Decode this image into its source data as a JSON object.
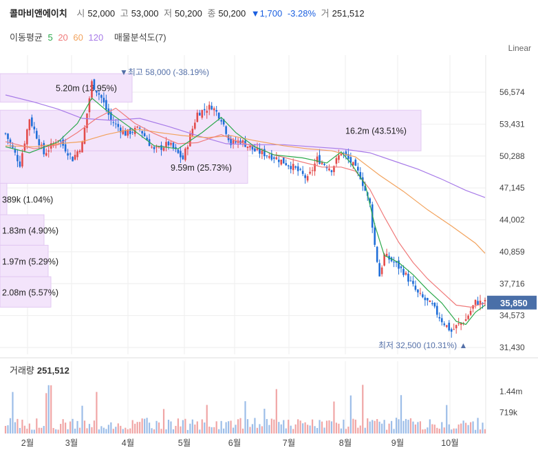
{
  "header": {
    "name": "콜마비앤에이치",
    "open_label": "시",
    "open": "52,000",
    "high_label": "고",
    "high": "53,000",
    "low_label": "저",
    "low": "50,200",
    "close_label": "종",
    "close": "50,200",
    "change": "▼1,700",
    "change_pct": "-3.28%",
    "volume_label": "거",
    "volume": "251,512"
  },
  "ma_legend": {
    "label": "이동평균",
    "periods": [
      "5",
      "20",
      "60",
      "120"
    ],
    "volume_profile": "매물분석도(7)"
  },
  "scale_mode": "Linear",
  "colors": {
    "up": "#e24b4b",
    "down": "#1f6ed8",
    "ma5": "#2aa84a",
    "ma20": "#f07a7a",
    "ma60": "#f2a25c",
    "ma120": "#a77ae8",
    "profile": "#f3e4fb",
    "current_price_tag": "#4a6fa8"
  },
  "chart_data": {
    "type": "candlestick",
    "y_ticks": [
      "56,574",
      "53,431",
      "50,288",
      "47,145",
      "44,002",
      "40,859",
      "37,716",
      "34,573",
      "31,430"
    ],
    "y_tick_values": [
      56574,
      53431,
      50288,
      47145,
      44002,
      40859,
      37716,
      34573,
      31430
    ],
    "x_months": [
      "2월",
      "3월",
      "4월",
      "5월",
      "6월",
      "7월",
      "8월",
      "9월",
      "10월"
    ],
    "current_price": "35,850",
    "current_price_value": 35850,
    "high_annotation": "최고 58,000 (-38.19%)",
    "high_value": 58000,
    "low_annotation": "최저 32,500 (10.31%)",
    "low_value": 32500,
    "volume_profile": [
      {
        "label": "5.20m (13.95%)",
        "price_from": 55600,
        "price_to": 58400
      },
      {
        "label": "16.2m (43.51%)",
        "price_from": 50800,
        "price_to": 54800
      },
      {
        "label": "9.59m (25.73%)",
        "price_from": 47600,
        "price_to": 50800
      },
      {
        "label": "389k (1.04%)",
        "price_from": 44500,
        "price_to": 47600
      },
      {
        "label": "1.83m (4.90%)",
        "price_from": 41500,
        "price_to": 44500
      },
      {
        "label": "1.97m (5.29%)",
        "price_from": 38400,
        "price_to": 41500
      },
      {
        "label": "2.08m (5.57%)",
        "price_from": 35400,
        "price_to": 38400
      }
    ],
    "ma120": [
      [
        0,
        56300
      ],
      [
        12,
        55600
      ],
      [
        22,
        54900
      ],
      [
        32,
        54000
      ],
      [
        44,
        53800
      ],
      [
        56,
        54000
      ],
      [
        68,
        53200
      ],
      [
        80,
        52300
      ],
      [
        92,
        51500
      ],
      [
        104,
        51400
      ],
      [
        116,
        51400
      ],
      [
        128,
        51200
      ],
      [
        140,
        51000
      ],
      [
        152,
        50600
      ],
      [
        162,
        49800
      ],
      [
        172,
        49000
      ],
      [
        182,
        48000
      ],
      [
        192,
        46900
      ],
      [
        200,
        46200
      ]
    ],
    "ma60": [
      [
        0,
        51300
      ],
      [
        12,
        51200
      ],
      [
        22,
        51500
      ],
      [
        32,
        51700
      ],
      [
        42,
        52400
      ],
      [
        50,
        52800
      ],
      [
        56,
        52900
      ],
      [
        64,
        52600
      ],
      [
        74,
        52300
      ],
      [
        84,
        52100
      ],
      [
        94,
        52300
      ],
      [
        104,
        51800
      ],
      [
        116,
        51300
      ],
      [
        126,
        51000
      ],
      [
        136,
        50800
      ],
      [
        146,
        50200
      ],
      [
        156,
        48400
      ],
      [
        166,
        46800
      ],
      [
        176,
        45000
      ],
      [
        186,
        43400
      ],
      [
        196,
        41700
      ],
      [
        200,
        40700
      ]
    ],
    "ma20": [
      [
        0,
        51700
      ],
      [
        12,
        51000
      ],
      [
        22,
        51400
      ],
      [
        30,
        52600
      ],
      [
        38,
        54000
      ],
      [
        46,
        55000
      ],
      [
        54,
        53500
      ],
      [
        62,
        52500
      ],
      [
        72,
        51500
      ],
      [
        80,
        51600
      ],
      [
        90,
        52400
      ],
      [
        96,
        51800
      ],
      [
        104,
        51200
      ],
      [
        112,
        50400
      ],
      [
        122,
        49800
      ],
      [
        132,
        49200
      ],
      [
        140,
        49200
      ],
      [
        146,
        48800
      ],
      [
        152,
        47000
      ],
      [
        158,
        44300
      ],
      [
        164,
        41800
      ],
      [
        170,
        39800
      ],
      [
        176,
        38200
      ],
      [
        182,
        36900
      ],
      [
        188,
        35600
      ],
      [
        194,
        35400
      ],
      [
        200,
        35800
      ]
    ],
    "ma5": [
      [
        0,
        51200
      ],
      [
        10,
        50600
      ],
      [
        22,
        51700
      ],
      [
        30,
        53500
      ],
      [
        36,
        56000
      ],
      [
        42,
        54800
      ],
      [
        52,
        53100
      ],
      [
        62,
        51300
      ],
      [
        72,
        51000
      ],
      [
        82,
        52600
      ],
      [
        90,
        54100
      ],
      [
        96,
        52600
      ],
      [
        104,
        51200
      ],
      [
        112,
        50400
      ],
      [
        124,
        50100
      ],
      [
        134,
        49600
      ],
      [
        140,
        50700
      ],
      [
        144,
        49600
      ],
      [
        150,
        47500
      ],
      [
        154,
        43500
      ],
      [
        158,
        40500
      ],
      [
        164,
        39800
      ],
      [
        170,
        38600
      ],
      [
        176,
        37100
      ],
      [
        182,
        35800
      ],
      [
        188,
        34000
      ],
      [
        192,
        33700
      ],
      [
        196,
        34900
      ],
      [
        200,
        35600
      ]
    ],
    "close_path": [
      [
        0,
        52500
      ],
      [
        6,
        49500
      ],
      [
        10,
        54000
      ],
      [
        16,
        50500
      ],
      [
        22,
        52000
      ],
      [
        28,
        50000
      ],
      [
        32,
        51500
      ],
      [
        36,
        57500
      ],
      [
        40,
        56000
      ],
      [
        44,
        53800
      ],
      [
        50,
        52500
      ],
      [
        56,
        53000
      ],
      [
        62,
        50800
      ],
      [
        68,
        51500
      ],
      [
        74,
        50000
      ],
      [
        80,
        54500
      ],
      [
        86,
        55200
      ],
      [
        90,
        54000
      ],
      [
        94,
        51500
      ],
      [
        98,
        51800
      ],
      [
        104,
        50800
      ],
      [
        112,
        50200
      ],
      [
        120,
        49200
      ],
      [
        126,
        48000
      ],
      [
        130,
        50000
      ],
      [
        136,
        49000
      ],
      [
        140,
        50700
      ],
      [
        144,
        49700
      ],
      [
        148,
        48300
      ],
      [
        152,
        45500
      ],
      [
        154,
        41500
      ],
      [
        156,
        38500
      ],
      [
        158,
        40500
      ],
      [
        162,
        39800
      ],
      [
        166,
        38900
      ],
      [
        172,
        36700
      ],
      [
        178,
        35500
      ],
      [
        182,
        34100
      ],
      [
        186,
        33000
      ],
      [
        188,
        33500
      ],
      [
        192,
        34200
      ],
      [
        196,
        35900
      ],
      [
        200,
        35850
      ]
    ],
    "volume_ticks": [
      "1.44m",
      "719k"
    ],
    "volume_tick_values": [
      1440000,
      719000
    ],
    "volume_label": "거래량",
    "volume_value": "251,512"
  }
}
